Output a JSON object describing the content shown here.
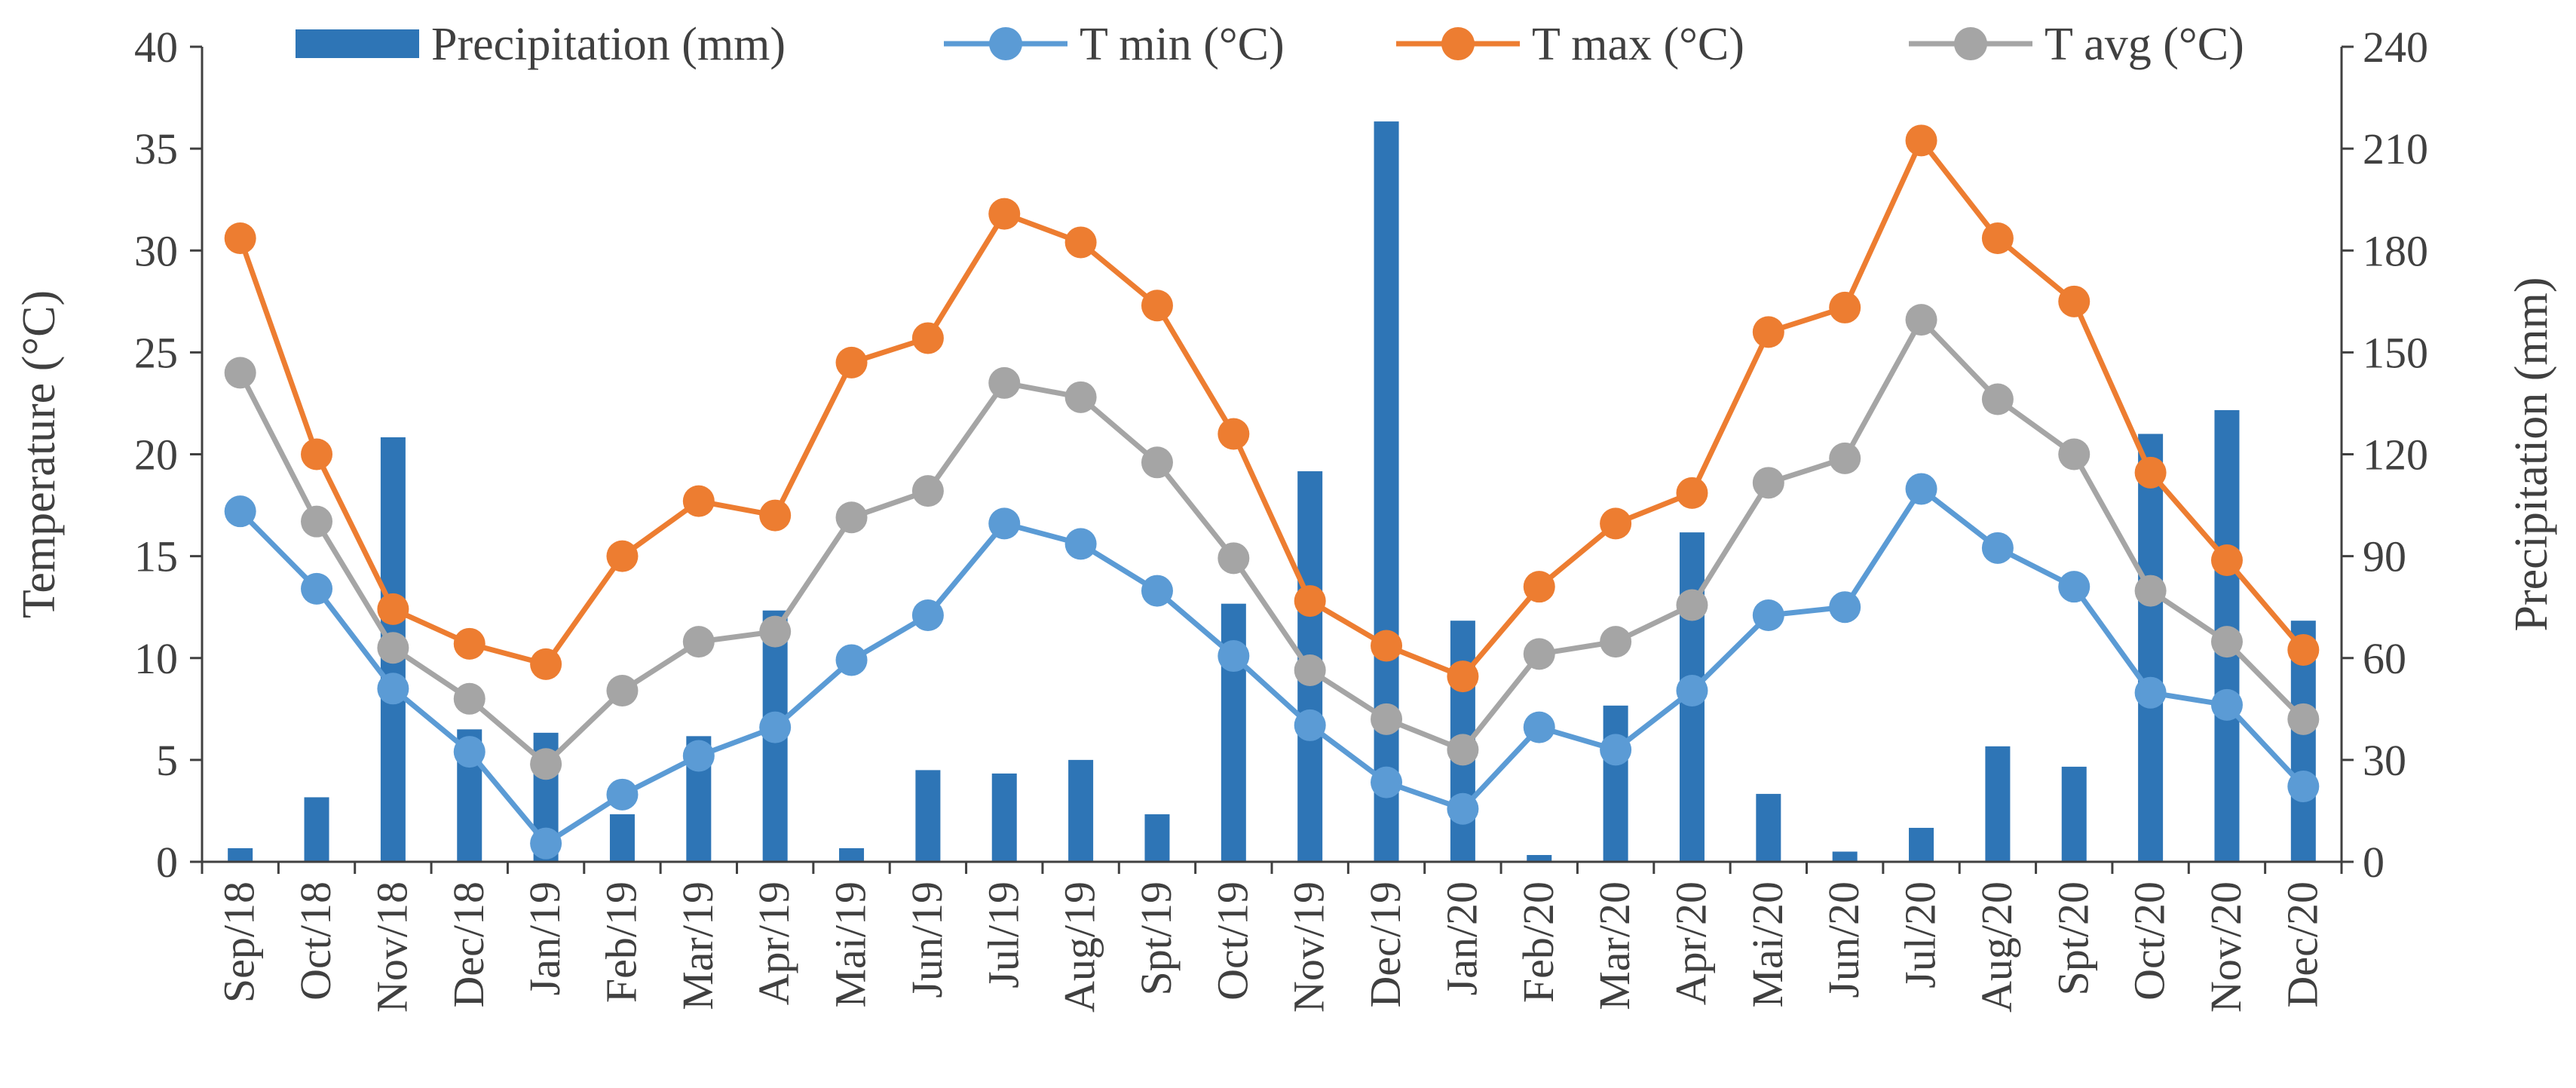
{
  "chart_data": {
    "type": "bar+line",
    "categories": [
      "Sep/18",
      "Oct/18",
      "Nov/18",
      "Dec/18",
      "Jan/19",
      "Feb/19",
      "Mar/19",
      "Apr/19",
      "Mai/19",
      "Jun/19",
      "Jul/19",
      "Aug/19",
      "Spt/19",
      "Oct/19",
      "Nov/19",
      "Dec/19",
      "Jan/20",
      "Feb/20",
      "Mar/20",
      "Apr/20",
      "Mai/20",
      "Jun/20",
      "Jul/20",
      "Aug/20",
      "Spt/20",
      "Oct/20",
      "Nov/20",
      "Dec/20"
    ],
    "bar_series": {
      "name": "Precipitation (mm)",
      "axis": "right",
      "color": "#2E75B6",
      "values": [
        4,
        19,
        125,
        39,
        38,
        14,
        37,
        74,
        4,
        27,
        26,
        30,
        14,
        76,
        115,
        218,
        71,
        2,
        46,
        97,
        20,
        3,
        10,
        34,
        28,
        126,
        133,
        71
      ]
    },
    "line_series": [
      {
        "name": "T min (°C)",
        "axis": "left",
        "color": "#5B9BD5",
        "values": [
          17.2,
          13.4,
          8.5,
          5.4,
          0.9,
          3.3,
          5.2,
          6.6,
          9.9,
          12.1,
          16.6,
          15.6,
          13.3,
          10.1,
          6.7,
          3.9,
          2.6,
          6.6,
          5.5,
          8.4,
          12.1,
          12.5,
          18.3,
          15.4,
          13.5,
          8.3,
          7.7,
          3.7
        ]
      },
      {
        "name": "T max (°C)",
        "axis": "left",
        "color": "#ED7D31",
        "values": [
          30.6,
          20.0,
          12.4,
          10.7,
          9.7,
          15.0,
          17.7,
          17.0,
          24.5,
          25.7,
          31.8,
          30.4,
          27.3,
          21.0,
          12.8,
          10.6,
          9.1,
          13.5,
          16.6,
          18.1,
          26.0,
          27.2,
          35.4,
          30.6,
          27.5,
          19.1,
          14.8,
          10.4
        ]
      },
      {
        "name": "T avg (°C)",
        "axis": "left",
        "color": "#A5A5A5",
        "values": [
          24.0,
          16.7,
          10.5,
          8.0,
          4.8,
          8.4,
          10.8,
          11.3,
          16.9,
          18.2,
          23.5,
          22.8,
          19.6,
          14.9,
          9.4,
          7.0,
          5.5,
          10.2,
          10.8,
          12.6,
          18.6,
          19.8,
          26.6,
          22.7,
          20.0,
          13.3,
          10.8,
          7.0
        ]
      }
    ],
    "y_left": {
      "label": "Temperature (°C)",
      "min": 0,
      "max": 40,
      "ticks": [
        "0",
        "5",
        "10",
        "15",
        "20",
        "25",
        "30",
        "35",
        "40"
      ]
    },
    "y_right": {
      "label": "Precipitation (mm)",
      "min": 0,
      "max": 240,
      "ticks": [
        "0",
        "30",
        "60",
        "90",
        "120",
        "150",
        "180",
        "210",
        "240"
      ]
    },
    "legend": {
      "position": "top",
      "items": [
        {
          "label": "Precipitation (mm)",
          "kind": "bar",
          "color": "#2E75B6"
        },
        {
          "label": "T min (°C)",
          "kind": "line",
          "color": "#5B9BD5"
        },
        {
          "label": "T max (°C)",
          "kind": "line",
          "color": "#ED7D31"
        },
        {
          "label": "T avg (°C)",
          "kind": "line",
          "color": "#A5A5A5"
        }
      ]
    },
    "grid": false,
    "axis_color": "#404040"
  }
}
